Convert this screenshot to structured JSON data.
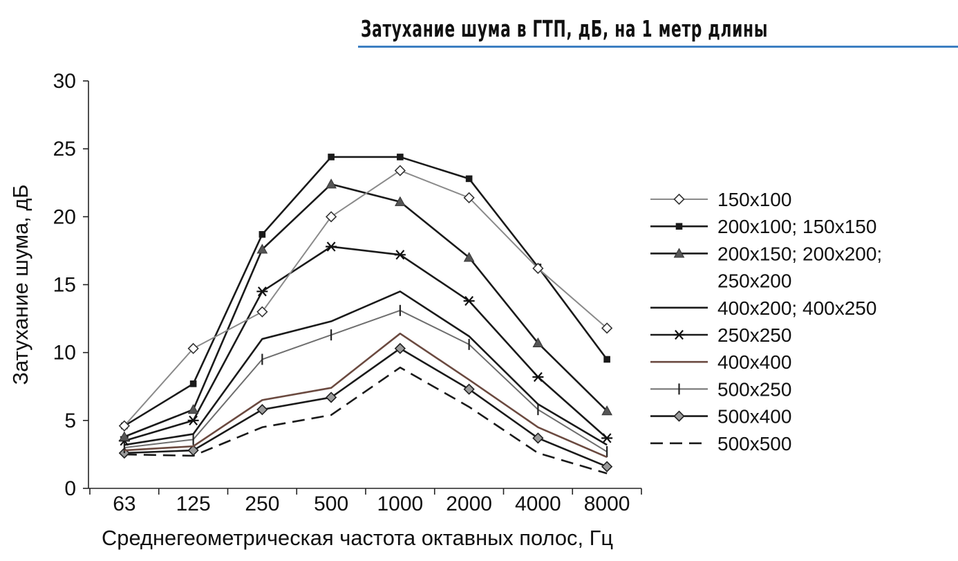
{
  "chart_data": {
    "type": "line",
    "title": "Затухание шума в ГТП, дБ, на 1 метр длины",
    "xlabel": "Среднегеометрическая частота октавных полос, Гц",
    "ylabel": "Затухание шума, дБ",
    "categories": [
      "63",
      "125",
      "250",
      "500",
      "1000",
      "2000",
      "4000",
      "8000"
    ],
    "y_ticks": [
      "0",
      "5",
      "10",
      "15",
      "20",
      "25",
      "30"
    ],
    "ylim": [
      0,
      30
    ],
    "grid": false,
    "legend_position": "right",
    "series": [
      {
        "name": "150x100",
        "values": [
          4.6,
          10.3,
          13.0,
          20.0,
          23.4,
          21.4,
          16.2,
          11.8
        ],
        "color": "#8a8a8a",
        "marker": "diamond-open",
        "dash": "solid"
      },
      {
        "name": "200x100; 150x150",
        "values": [
          4.6,
          7.7,
          18.7,
          24.4,
          24.4,
          22.8,
          16.3,
          9.5
        ],
        "color": "#1a1a1a",
        "marker": "square",
        "dash": "solid"
      },
      {
        "name": "200x150; 200x200; 250x200",
        "values": [
          3.8,
          5.8,
          17.6,
          22.4,
          21.1,
          17.0,
          10.7,
          5.7
        ],
        "color": "#1a1a1a",
        "marker": "triangle",
        "dash": "solid"
      },
      {
        "name": "400x200; 400x250",
        "values": [
          3.2,
          4.0,
          11.0,
          12.3,
          14.5,
          11.2,
          6.2,
          3.2
        ],
        "color": "#1a1a1a",
        "marker": "none",
        "dash": "solid"
      },
      {
        "name": "250x250",
        "values": [
          3.5,
          5.0,
          14.5,
          17.8,
          17.2,
          13.8,
          8.2,
          3.7
        ],
        "color": "#1a1a1a",
        "marker": "asterisk",
        "dash": "solid"
      },
      {
        "name": "400x400",
        "values": [
          2.8,
          3.1,
          6.5,
          7.4,
          11.4,
          8.0,
          4.5,
          2.3
        ],
        "color": "#6b4a40",
        "marker": "none",
        "dash": "solid"
      },
      {
        "name": "500x250",
        "values": [
          3.0,
          3.6,
          9.5,
          11.3,
          13.1,
          10.6,
          5.8,
          2.7
        ],
        "color": "#6e6e6e",
        "marker": "vtick",
        "dash": "solid"
      },
      {
        "name": "500x400",
        "values": [
          2.6,
          2.8,
          5.8,
          6.7,
          10.3,
          7.3,
          3.7,
          1.6
        ],
        "color": "#1a1a1a",
        "marker": "diamond-filled",
        "dash": "solid"
      },
      {
        "name": "500x500",
        "values": [
          2.5,
          2.4,
          4.5,
          5.4,
          8.9,
          6.0,
          2.6,
          1.1
        ],
        "color": "#1a1a1a",
        "marker": "none",
        "dash": "dashed"
      }
    ]
  }
}
